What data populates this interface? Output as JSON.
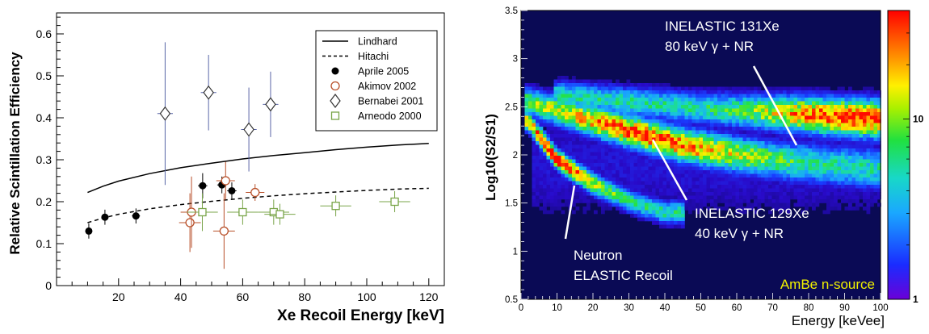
{
  "chart_data": [
    {
      "type": "scatter",
      "title": "",
      "xlabel": "Xe Recoil Energy [keV]",
      "ylabel": "Relative Scintillation Efficiency",
      "xlim": [
        0,
        125
      ],
      "ylim": [
        0,
        0.65
      ],
      "x_ticks": [
        "20",
        "40",
        "60",
        "80",
        "100",
        "120"
      ],
      "y_ticks": [
        "0",
        "0.1",
        "0.2",
        "0.3",
        "0.4",
        "0.5",
        "0.6"
      ],
      "grid": false,
      "legend_position": "top-right",
      "curves": [
        {
          "name": "Lindhard",
          "style": "solid",
          "color": "#000000",
          "x": [
            10,
            15,
            20,
            30,
            40,
            50,
            60,
            70,
            80,
            90,
            100,
            110,
            120
          ],
          "y": [
            0.222,
            0.237,
            0.249,
            0.267,
            0.281,
            0.292,
            0.302,
            0.31,
            0.317,
            0.324,
            0.33,
            0.335,
            0.339
          ]
        },
        {
          "name": "Hitachi",
          "style": "dashed",
          "color": "#000000",
          "x": [
            10,
            15,
            20,
            30,
            40,
            50,
            60,
            70,
            80,
            90,
            100,
            110,
            120
          ],
          "y": [
            0.15,
            0.161,
            0.17,
            0.183,
            0.193,
            0.201,
            0.208,
            0.214,
            0.219,
            0.223,
            0.227,
            0.23,
            0.232
          ]
        }
      ],
      "series": [
        {
          "name": "Aprile 2005",
          "marker": "filled-circle",
          "color": "#000000",
          "points": [
            {
              "x": 10.4,
              "y": 0.13,
              "ex": 0.8,
              "ey": 0.018
            },
            {
              "x": 15.6,
              "y": 0.163,
              "ex": 1.0,
              "ey": 0.018
            },
            {
              "x": 25.6,
              "y": 0.166,
              "ex": 1.3,
              "ey": 0.018
            },
            {
              "x": 47.1,
              "y": 0.238,
              "ex": 1.5,
              "ey": 0.03
            },
            {
              "x": 53.3,
              "y": 0.24,
              "ex": 1.5,
              "ey": 0.02
            },
            {
              "x": 56.5,
              "y": 0.226,
              "ex": 1.5,
              "ey": 0.02
            }
          ]
        },
        {
          "name": "Akimov 2002",
          "marker": "open-circle",
          "color": "#b8502a",
          "points": [
            {
              "x": 43.0,
              "y": 0.15,
              "ex": 3.5,
              "ey": 0.07
            },
            {
              "x": 43.5,
              "y": 0.175,
              "ex": 3.5,
              "ey": 0.085
            },
            {
              "x": 54.0,
              "y": 0.13,
              "ex": 3.5,
              "ey": 0.09
            },
            {
              "x": 54.5,
              "y": 0.25,
              "ex": 3.0,
              "ey": 0.045
            },
            {
              "x": 64.0,
              "y": 0.222,
              "ex": 3.0,
              "ey": 0.02
            }
          ]
        },
        {
          "name": "Bernabei 2001",
          "marker": "open-diamond",
          "color": "#5a66a8",
          "points": [
            {
              "x": 35.0,
              "y": 0.41,
              "ex": 2.5,
              "ey": 0.17
            },
            {
              "x": 49.0,
              "y": 0.46,
              "ex": 2.5,
              "ey": 0.09
            },
            {
              "x": 62.0,
              "y": 0.372,
              "ex": 2.5,
              "ey": 0.1
            },
            {
              "x": 69.0,
              "y": 0.432,
              "ex": 2.5,
              "ey": 0.078
            }
          ]
        },
        {
          "name": "Arneodo 2000",
          "marker": "open-square",
          "color": "#7aa54a",
          "points": [
            {
              "x": 47.0,
              "y": 0.175,
              "ex": 5.0,
              "ey": 0.045
            },
            {
              "x": 60.0,
              "y": 0.175,
              "ex": 5.0,
              "ey": 0.03
            },
            {
              "x": 70.0,
              "y": 0.175,
              "ex": 5.0,
              "ey": 0.03
            },
            {
              "x": 72.0,
              "y": 0.17,
              "ex": 5.0,
              "ey": 0.025
            },
            {
              "x": 90.0,
              "y": 0.19,
              "ex": 5.0,
              "ey": 0.025
            },
            {
              "x": 109.0,
              "y": 0.2,
              "ex": 5.0,
              "ey": 0.025
            }
          ]
        }
      ]
    },
    {
      "type": "heatmap",
      "title": "",
      "xlabel": "Energy [keVee]",
      "ylabel": "Log10(S2/S1)",
      "xlim": [
        0,
        100
      ],
      "ylim": [
        0.5,
        3.5
      ],
      "x_ticks": [
        "0",
        "10",
        "20",
        "30",
        "40",
        "50",
        "60",
        "70",
        "80",
        "90",
        "100"
      ],
      "y_ticks": [
        "0.5",
        "1",
        "1.5",
        "2",
        "2.5",
        "3",
        "3.5"
      ],
      "colorbar_ticks": [
        "1",
        "10"
      ],
      "log_color_scale": true,
      "bands": [
        {
          "name": "ELASTIC Recoil",
          "x": [
            2,
            10,
            20,
            30,
            40
          ],
          "y": [
            2.35,
            1.95,
            1.7,
            1.52,
            1.4
          ],
          "peak_x": 10
        },
        {
          "name": "INELASTIC 129Xe",
          "x": [
            2,
            15,
            30,
            45,
            60,
            75,
            100
          ],
          "y": [
            2.55,
            2.4,
            2.25,
            2.1,
            2.0,
            1.93,
            1.85
          ],
          "peak_x": 35
        },
        {
          "name": "INELASTIC 131Xe",
          "x": [
            10,
            30,
            50,
            70,
            85,
            100
          ],
          "y": [
            2.62,
            2.55,
            2.48,
            2.44,
            2.4,
            2.37
          ],
          "peak_x": 90
        }
      ],
      "annotations": [
        {
          "lines": [
            "INELASTIC 131Xe",
            "80 keV γ + NR"
          ],
          "color": "#ffffff"
        },
        {
          "lines": [
            "INELASTIC 129Xe",
            "40 keV γ + NR"
          ],
          "color": "#ffffff"
        },
        {
          "lines": [
            "Neutron",
            "ELASTIC Recoil"
          ],
          "color": "#ffffff"
        },
        {
          "lines": [
            "AmBe n-source"
          ],
          "color": "#f0f000"
        }
      ],
      "colors": {
        "background": "#0a0a55",
        "annotation_text": "#ffffff",
        "source_text": "#f0f000"
      }
    }
  ]
}
